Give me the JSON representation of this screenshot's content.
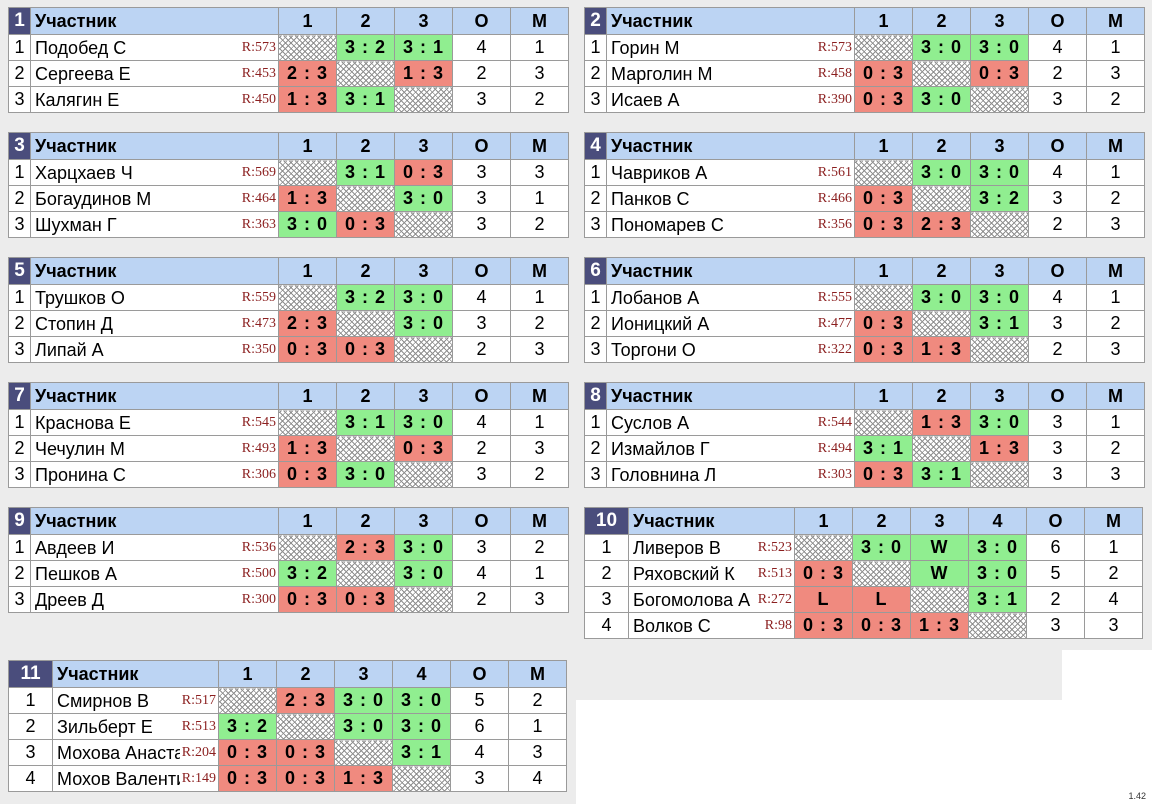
{
  "version": "1.42",
  "groups": [
    {
      "number": "1",
      "headers": [
        "Участник",
        "1",
        "2",
        "3",
        "О",
        "М"
      ],
      "rows": [
        {
          "rank": "1",
          "name": "Подобед С",
          "rating": "R:573",
          "results": [
            "",
            "3 : 2",
            "3 : 1"
          ],
          "points": "4",
          "place": "1"
        },
        {
          "rank": "2",
          "name": "Сергеева Е",
          "rating": "R:453",
          "results": [
            "2 : 3",
            "",
            "1 : 3"
          ],
          "points": "2",
          "place": "3"
        },
        {
          "rank": "3",
          "name": "Калягин Е",
          "rating": "R:450",
          "results": [
            "1 : 3",
            "3 : 1",
            ""
          ],
          "points": "3",
          "place": "2"
        }
      ]
    },
    {
      "number": "2",
      "headers": [
        "Участник",
        "1",
        "2",
        "3",
        "О",
        "М"
      ],
      "rows": [
        {
          "rank": "1",
          "name": "Горин М",
          "rating": "R:573",
          "results": [
            "",
            "3 : 0",
            "3 : 0"
          ],
          "points": "4",
          "place": "1"
        },
        {
          "rank": "2",
          "name": "Марголин М",
          "rating": "R:458",
          "results": [
            "0 : 3",
            "",
            "0 : 3"
          ],
          "points": "2",
          "place": "3"
        },
        {
          "rank": "3",
          "name": "Исаев А",
          "rating": "R:390",
          "results": [
            "0 : 3",
            "3 : 0",
            ""
          ],
          "points": "3",
          "place": "2"
        }
      ]
    },
    {
      "number": "3",
      "headers": [
        "Участник",
        "1",
        "2",
        "3",
        "О",
        "М"
      ],
      "rows": [
        {
          "rank": "1",
          "name": "Харцхаев Ч",
          "rating": "R:569",
          "results": [
            "",
            "3 : 1",
            "0 : 3"
          ],
          "points": "3",
          "place": "3"
        },
        {
          "rank": "2",
          "name": "Богаудинов М",
          "rating": "R:464",
          "results": [
            "1 : 3",
            "",
            "3 : 0"
          ],
          "points": "3",
          "place": "1"
        },
        {
          "rank": "3",
          "name": "Шухман Г",
          "rating": "R:363",
          "results": [
            "3 : 0",
            "0 : 3",
            ""
          ],
          "points": "3",
          "place": "2"
        }
      ]
    },
    {
      "number": "4",
      "headers": [
        "Участник",
        "1",
        "2",
        "3",
        "О",
        "М"
      ],
      "rows": [
        {
          "rank": "1",
          "name": "Чавриков А",
          "rating": "R:561",
          "results": [
            "",
            "3 : 0",
            "3 : 0"
          ],
          "points": "4",
          "place": "1"
        },
        {
          "rank": "2",
          "name": "Панков С",
          "rating": "R:466",
          "results": [
            "0 : 3",
            "",
            "3 : 2"
          ],
          "points": "3",
          "place": "2"
        },
        {
          "rank": "3",
          "name": "Пономарев С",
          "rating": "R:356",
          "results": [
            "0 : 3",
            "2 : 3",
            ""
          ],
          "points": "2",
          "place": "3"
        }
      ]
    },
    {
      "number": "5",
      "headers": [
        "Участник",
        "1",
        "2",
        "3",
        "О",
        "М"
      ],
      "rows": [
        {
          "rank": "1",
          "name": "Трушков О",
          "rating": "R:559",
          "results": [
            "",
            "3 : 2",
            "3 : 0"
          ],
          "points": "4",
          "place": "1"
        },
        {
          "rank": "2",
          "name": "Стопин Д",
          "rating": "R:473",
          "results": [
            "2 : 3",
            "",
            "3 : 0"
          ],
          "points": "3",
          "place": "2"
        },
        {
          "rank": "3",
          "name": "Липай А",
          "rating": "R:350",
          "results": [
            "0 : 3",
            "0 : 3",
            ""
          ],
          "points": "2",
          "place": "3"
        }
      ]
    },
    {
      "number": "6",
      "headers": [
        "Участник",
        "1",
        "2",
        "3",
        "О",
        "М"
      ],
      "rows": [
        {
          "rank": "1",
          "name": "Лобанов А",
          "rating": "R:555",
          "results": [
            "",
            "3 : 0",
            "3 : 0"
          ],
          "points": "4",
          "place": "1"
        },
        {
          "rank": "2",
          "name": "Ионицкий А",
          "rating": "R:477",
          "results": [
            "0 : 3",
            "",
            "3 : 1"
          ],
          "points": "3",
          "place": "2"
        },
        {
          "rank": "3",
          "name": "Торгони О",
          "rating": "R:322",
          "results": [
            "0 : 3",
            "1 : 3",
            ""
          ],
          "points": "2",
          "place": "3"
        }
      ]
    },
    {
      "number": "7",
      "headers": [
        "Участник",
        "1",
        "2",
        "3",
        "О",
        "М"
      ],
      "rows": [
        {
          "rank": "1",
          "name": "Краснова Е",
          "rating": "R:545",
          "results": [
            "",
            "3 : 1",
            "3 : 0"
          ],
          "points": "4",
          "place": "1"
        },
        {
          "rank": "2",
          "name": "Чечулин М",
          "rating": "R:493",
          "results": [
            "1 : 3",
            "",
            "0 : 3"
          ],
          "points": "2",
          "place": "3"
        },
        {
          "rank": "3",
          "name": "Пронина С",
          "rating": "R:306",
          "results": [
            "0 : 3",
            "3 : 0",
            ""
          ],
          "points": "3",
          "place": "2"
        }
      ]
    },
    {
      "number": "8",
      "headers": [
        "Участник",
        "1",
        "2",
        "3",
        "О",
        "М"
      ],
      "rows": [
        {
          "rank": "1",
          "name": "Суслов А",
          "rating": "R:544",
          "results": [
            "",
            "1 : 3",
            "3 : 0"
          ],
          "points": "3",
          "place": "1"
        },
        {
          "rank": "2",
          "name": "Измайлов Г",
          "rating": "R:494",
          "results": [
            "3 : 1",
            "",
            "1 : 3"
          ],
          "points": "3",
          "place": "2"
        },
        {
          "rank": "3",
          "name": "Головнина Л",
          "rating": "R:303",
          "results": [
            "0 : 3",
            "3 : 1",
            ""
          ],
          "points": "3",
          "place": "3"
        }
      ]
    },
    {
      "number": "9",
      "headers": [
        "Участник",
        "1",
        "2",
        "3",
        "О",
        "М"
      ],
      "rows": [
        {
          "rank": "1",
          "name": "Авдеев И",
          "rating": "R:536",
          "results": [
            "",
            "2 : 3",
            "3 : 0"
          ],
          "points": "3",
          "place": "2"
        },
        {
          "rank": "2",
          "name": "Пешков А",
          "rating": "R:500",
          "results": [
            "3 : 2",
            "",
            "3 : 0"
          ],
          "points": "4",
          "place": "1"
        },
        {
          "rank": "3",
          "name": "Дреев Д",
          "rating": "R:300",
          "results": [
            "0 : 3",
            "0 : 3",
            ""
          ],
          "points": "2",
          "place": "3"
        }
      ]
    },
    {
      "number": "10",
      "headers": [
        "Участник",
        "1",
        "2",
        "3",
        "4",
        "О",
        "М"
      ],
      "rows": [
        {
          "rank": "1",
          "name": "Ливеров В",
          "rating": "R:523",
          "results": [
            "",
            "3 : 0",
            "W",
            "3 : 0"
          ],
          "points": "6",
          "place": "1"
        },
        {
          "rank": "2",
          "name": "Ряховский К",
          "rating": "R:513",
          "results": [
            "0 : 3",
            "",
            "W",
            "3 : 0"
          ],
          "points": "5",
          "place": "2"
        },
        {
          "rank": "3",
          "name": "Богомолова А",
          "rating": "R:272",
          "results": [
            "L",
            "L",
            "",
            "3 : 1"
          ],
          "points": "2",
          "place": "4"
        },
        {
          "rank": "4",
          "name": "Волков С",
          "rating": "R:98",
          "results": [
            "0 : 3",
            "0 : 3",
            "1 : 3",
            ""
          ],
          "points": "3",
          "place": "3"
        }
      ]
    },
    {
      "number": "11",
      "headers": [
        "Участник",
        "1",
        "2",
        "3",
        "4",
        "О",
        "М"
      ],
      "rows": [
        {
          "rank": "1",
          "name": "Смирнов В",
          "rating": "R:517",
          "results": [
            "",
            "2 : 3",
            "3 : 0",
            "3 : 0"
          ],
          "points": "5",
          "place": "2"
        },
        {
          "rank": "2",
          "name": "Зильберт Е",
          "rating": "R:513",
          "results": [
            "3 : 2",
            "",
            "3 : 0",
            "3 : 0"
          ],
          "points": "6",
          "place": "1"
        },
        {
          "rank": "3",
          "name": "Мохова Анастасия",
          "rating": "R:204",
          "results": [
            "0 : 3",
            "0 : 3",
            "",
            "3 : 1"
          ],
          "points": "4",
          "place": "3"
        },
        {
          "rank": "4",
          "name": "Мохов Валентин",
          "rating": "R:149",
          "results": [
            "0 : 3",
            "0 : 3",
            "1 : 3",
            ""
          ],
          "points": "3",
          "place": "4"
        }
      ]
    }
  ]
}
